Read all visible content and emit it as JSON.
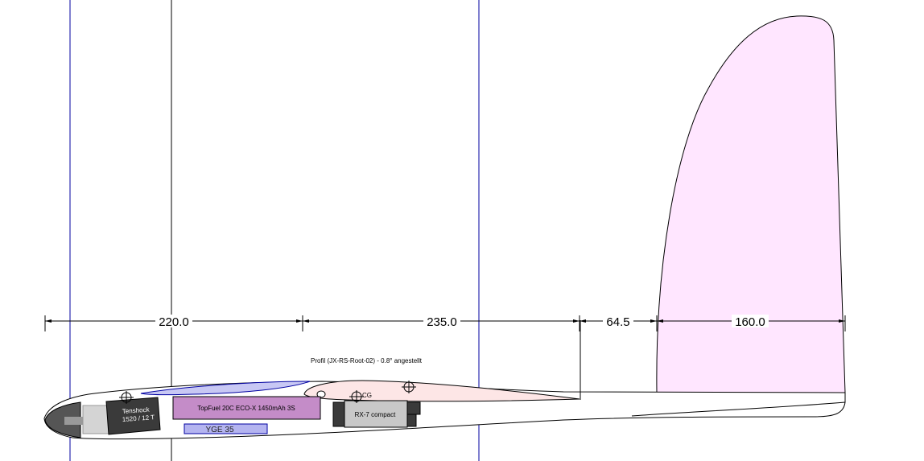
{
  "dimensions": {
    "nose_to_wing": "220.0",
    "wing_to_tail": "235.0",
    "tail_gap": "64.5",
    "fin": "160.0"
  },
  "labels": {
    "profile": "Profil (JX-RS-Root-02) - 0.8° angestellt",
    "cg": "CG",
    "battery": "TopFuel 20C ECO-X 1450mAh 3S",
    "esc": "YGE 35",
    "receiver": "RX-7 compact",
    "motor_line1": "Tenshock",
    "motor_line2": "1520 / 12 T"
  },
  "colors": {
    "guide_blue": "#0000a0",
    "fin_fill": "#ffe6ff",
    "wing_fill": "#fde6e6",
    "canopy_fill": "#c8c8f4",
    "battery_fill": "#c48cc8",
    "esc_fill": "#b4b4f0",
    "receiver_fill": "#c8c8c8",
    "motor_fill": "#3a3a3a"
  }
}
